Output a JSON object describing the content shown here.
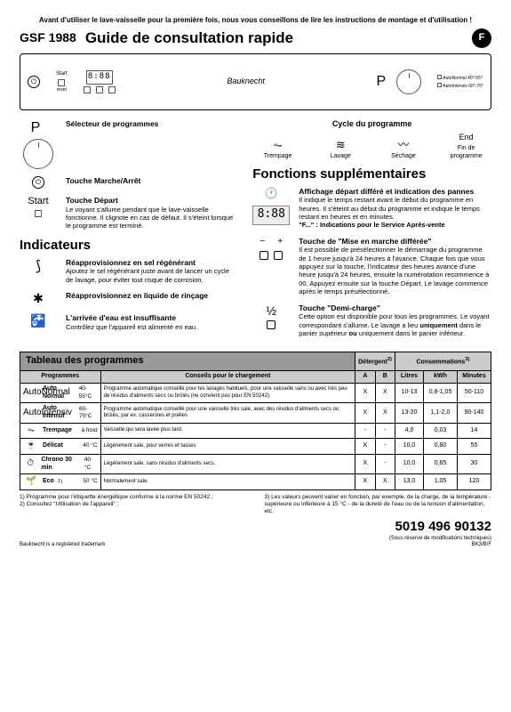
{
  "pre_note": "Avant d'utiliser le lave-vaisselle pour la première fois, nous vous conseillons de lire les instructions de montage et d'utilisation !",
  "model": "GSF 1988",
  "title": "Guide de consultation rapide",
  "lang": "F",
  "panel": {
    "brand": "Bauknecht",
    "display": "8:88",
    "start": "Start",
    "reset": "reset",
    "p": "P",
    "legend1": "AutoNormal 40°-55°",
    "legend2": "AutoIntensiv 60°-70°"
  },
  "left": {
    "p_label": "P",
    "selector_t": "Sélecteur de programmes",
    "onoff_sym": "⏻",
    "onoff_t": "Touche Marche/Arrêt",
    "start_t_label": "Start",
    "start_t": "Touche Départ",
    "start_d": "Le voyant s'allume pendant que le lave-vaisselle fonctionne. Il clignote en cas de défaut. Il s'éteint lorsque le programme est terminé.",
    "ind_h": "Indicateurs",
    "salt_t": "Réapprovisionnez en sel régénérant",
    "salt_d": "Ajoutez le sel régénérant juste avant de lancer un cycle de lavage, pour éviter tout risque de corrosion.",
    "rinse_t": "Réapprovisionnez en liquide de rinçage",
    "water_t": "L'arrivée d'eau est insuffisante",
    "water_d": "Contrôlez que l'appareil est alimenté en eau."
  },
  "right": {
    "cycle_h": "Cycle du programme",
    "cycle": [
      {
        "ic": "⏦",
        "l": "Trempage"
      },
      {
        "ic": "≋",
        "l": "Lavage"
      },
      {
        "ic": "〰",
        "l": "Séchage"
      },
      {
        "ic": "End",
        "l": "Fin de programme"
      }
    ],
    "func_h": "Fonctions supplémentaires",
    "delay_t": "Affichage départ différé et indication des pannes",
    "delay_d1": "Il indique le temps restant avant le début du programme en heures. Il s'éteint au début du programme et indique le temps restant en heures et en minutes.",
    "delay_d2": "\"F...\" : Indications pour le Service Après-vente",
    "disp": "8:88",
    "diff_t": "Touche de \"Mise en marche différée\"",
    "diff_d": "Il est possible de présélectionner le démarrage du programme de 1 heure jusqu'à 24 heures à l'avance. Chaque fois que vous appuyez sur la touche, l'indicateur des heures avance d'une heure jusqu'à 24 heures, ensuite la numérotation recommence à 00. Appuyez ensuite sur la touche Départ. Le lavage commence après le temps présélectionné.",
    "half_t": "Touche \"Demi-charge\"",
    "half_d1": "Cette option est disponible pour tous les programmes. Le voyant correspondant s'allume. Le lavage a lieu ",
    "half_b1": "uniquement",
    "half_d2": " dans le panier supérieur ",
    "half_b2": "ou",
    "half_d3": " uniquement dans le panier inférieur."
  },
  "table": {
    "h_main": "Tableau des programmes",
    "h_det": "Détergent",
    "h_det_sup": "2)",
    "h_cons": "Consommations",
    "h_cons_sup": "3)",
    "h_prog": "Programmes",
    "h_tips": "Conseils pour le chargement",
    "h_a": "A",
    "h_b": "B",
    "h_l": "Litres",
    "h_kwh": "kWh",
    "h_min": "Minutes",
    "rows": [
      {
        "ic": "AutoNormal",
        "name": "Auto Normal",
        "temp": "40-55°C",
        "tip": "Programme automatique conseillé pour les lavages habituels, pour une vaisselle sans ou avec très peu de résidus d'aliments secs ou brûlés (ne convient pas pour EN 50242).",
        "a": "X",
        "b": "X",
        "l": "10-13",
        "kwh": "0,8-1,05",
        "min": "50-110"
      },
      {
        "ic": "AutoIntensiv",
        "name": "Auto Intensif",
        "temp": "60-70°C",
        "tip": "Programme automatique conseillé pour une vaisselle très sale, avec des résidus d'aliments secs ou brûlés, par ex. casseroles et poêles",
        "a": "X",
        "b": "X",
        "l": "13-20",
        "kwh": "1,1-2,0",
        "min": "90-140"
      },
      {
        "ic": "⏦",
        "name": "Trempage",
        "temp": "à froid",
        "tip": "Vaisselle qui sera lavée plus tard.",
        "a": "-",
        "b": "-",
        "l": "4,0",
        "kwh": "0,03",
        "min": "14"
      },
      {
        "ic": "🍷",
        "name": "Délicat",
        "temp": "40 °C",
        "tip": "Légèrement sale, pour verres et tasses",
        "a": "X",
        "b": "-",
        "l": "10,0",
        "kwh": "0,80",
        "min": "55"
      },
      {
        "ic": "⏱",
        "name": "Chrono 30 min",
        "temp": "40 °C",
        "tip": "Légèrement sale, sans résidus d'aliments secs.",
        "a": "X",
        "b": "-",
        "l": "10,0",
        "kwh": "0,65",
        "min": "30"
      },
      {
        "ic": "🌱",
        "name": "Eco",
        "name_sup": "1)",
        "temp": "50 °C",
        "tip": "Normalement sale.",
        "a": "X",
        "b": "X",
        "l": "13,0",
        "kwh": "1,05",
        "min": "120"
      }
    ]
  },
  "notes": {
    "n1_a": "1)",
    "n1_b": "Programme pour l'étiquette énergétique conforme à la norme EN 50242 ;",
    "n2_a": "2)",
    "n2_b": "Consultez \"Utilisation de l'appareil\" ;",
    "n3_a": "3)",
    "n3_b": "Les valeurs peuvent varier en fonction, par exemple, de la charge, de la température - supérieure ou inférieure à 15 °C - de la dureté de l'eau ou de la tension d'alimentation, etc."
  },
  "trademark": "Bauknecht is a registered trademark",
  "partno": "5019 496 90132",
  "sub": "(Sous réserve de modifications techniques)",
  "ref": "BK3/B/F"
}
